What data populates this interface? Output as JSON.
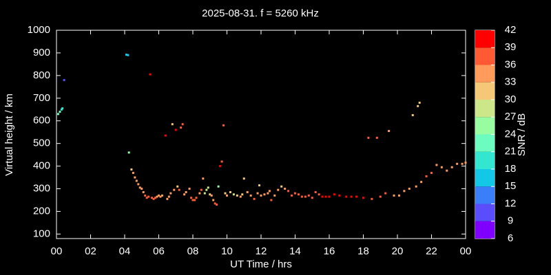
{
  "chart_data": {
    "type": "scatter",
    "title": "2025-08-31. f = 5260 kHz",
    "x_label": "UT Time / hrs",
    "y_label": "Virtual height / km",
    "xlim": [
      0,
      24
    ],
    "ylim": [
      80,
      1000
    ],
    "xticks": [
      {
        "value": 0,
        "label": "00"
      },
      {
        "value": 2,
        "label": "02"
      },
      {
        "value": 4,
        "label": "04"
      },
      {
        "value": 6,
        "label": "06"
      },
      {
        "value": 8,
        "label": "08"
      },
      10,
      12,
      14,
      16,
      18,
      20,
      22,
      {
        "value": 24,
        "label": "00"
      }
    ],
    "yticks": [
      100,
      200,
      300,
      400,
      500,
      600,
      700,
      800,
      900,
      1000
    ],
    "colorbar": {
      "label": "SNR / dB",
      "clim": [
        6,
        42
      ],
      "ticks": [
        6,
        9,
        12,
        15,
        18,
        21,
        24,
        27,
        30,
        33,
        36,
        39,
        42
      ],
      "colors": [
        "#8000ff",
        "#5a4dfc",
        "#3a7ef8",
        "#12c8e6",
        "#32e6d0",
        "#6cfcc0",
        "#98fca0",
        "#cce68a",
        "#f5c878",
        "#ff9c5c",
        "#ff5a34",
        "#ff0000"
      ]
    },
    "x": [
      0.1,
      0.2,
      0.3,
      0.35,
      0.45,
      4.1,
      4.2,
      4.25,
      4.4,
      4.5,
      4.6,
      4.7,
      4.8,
      4.9,
      5.0,
      5.1,
      5.2,
      5.3,
      5.4,
      5.5,
      5.6,
      5.7,
      5.8,
      5.9,
      6.0,
      6.1,
      6.2,
      6.4,
      6.5,
      6.6,
      6.7,
      6.8,
      6.9,
      7.0,
      7.1,
      7.2,
      7.3,
      7.4,
      7.5,
      7.6,
      7.8,
      7.9,
      8.0,
      8.1,
      8.2,
      8.4,
      8.5,
      8.6,
      8.7,
      8.8,
      8.9,
      9.0,
      9.1,
      9.2,
      9.3,
      9.4,
      9.5,
      9.6,
      9.7,
      9.8,
      9.9,
      10.0,
      10.2,
      10.4,
      10.6,
      10.8,
      10.9,
      11.0,
      11.2,
      11.4,
      11.6,
      11.8,
      11.9,
      12.0,
      12.2,
      12.4,
      12.5,
      12.6,
      12.8,
      13.0,
      13.2,
      13.4,
      13.6,
      13.8,
      14.0,
      14.2,
      14.4,
      14.6,
      14.8,
      15.0,
      15.2,
      15.4,
      15.6,
      15.8,
      16.0,
      16.3,
      16.6,
      17.0,
      17.3,
      17.6,
      18.0,
      18.3,
      18.5,
      18.8,
      19.0,
      19.3,
      19.5,
      19.8,
      20.1,
      20.4,
      20.7,
      20.9,
      21.1,
      21.2,
      21.3,
      21.4,
      21.7,
      22.0,
      22.3,
      22.6,
      22.9,
      23.2,
      23.5,
      23.8,
      24.0
    ],
    "values": [
      630,
      640,
      650,
      655,
      780,
      892,
      890,
      460,
      385,
      370,
      350,
      335,
      320,
      305,
      300,
      285,
      270,
      260,
      265,
      805,
      260,
      255,
      260,
      265,
      270,
      265,
      270,
      535,
      255,
      265,
      280,
      585,
      295,
      560,
      310,
      295,
      570,
      585,
      275,
      285,
      300,
      260,
      250,
      250,
      260,
      280,
      295,
      345,
      280,
      295,
      305,
      275,
      270,
      250,
      235,
      230,
      310,
      400,
      420,
      580,
      280,
      270,
      285,
      275,
      270,
      265,
      275,
      345,
      285,
      270,
      255,
      280,
      315,
      270,
      275,
      280,
      290,
      250,
      270,
      295,
      310,
      300,
      290,
      270,
      280,
      275,
      265,
      265,
      270,
      260,
      285,
      275,
      265,
      265,
      265,
      275,
      270,
      265,
      265,
      265,
      260,
      525,
      255,
      525,
      265,
      280,
      555,
      270,
      270,
      290,
      300,
      625,
      310,
      665,
      680,
      330,
      355,
      370,
      405,
      395,
      380,
      395,
      410,
      410,
      415
    ],
    "snr": [
      22,
      22,
      20,
      20,
      11,
      17,
      17,
      24,
      31,
      33,
      34,
      34,
      34,
      35,
      35,
      35,
      36,
      37,
      37,
      40,
      37,
      38,
      36,
      35,
      33,
      35,
      34,
      40,
      35,
      34,
      33,
      32,
      35,
      39,
      30,
      36,
      38,
      37,
      33,
      33,
      34,
      37,
      38,
      37,
      36,
      33,
      36,
      33,
      28,
      27,
      27,
      30,
      35,
      34,
      36,
      37,
      26,
      40,
      37,
      38,
      32,
      33,
      30,
      28,
      30,
      33,
      31,
      32,
      33,
      35,
      36,
      33,
      30,
      34,
      34,
      35,
      34,
      36,
      35,
      35,
      31,
      34,
      36,
      37,
      38,
      37,
      37,
      38,
      37,
      36,
      37,
      38,
      39,
      39,
      39,
      40,
      39,
      40,
      39,
      40,
      39,
      38,
      38,
      38,
      36,
      36,
      33,
      35,
      35,
      33,
      35,
      31,
      33,
      31,
      30,
      35,
      36,
      36,
      35,
      34,
      33,
      35,
      35,
      34,
      33
    ]
  }
}
